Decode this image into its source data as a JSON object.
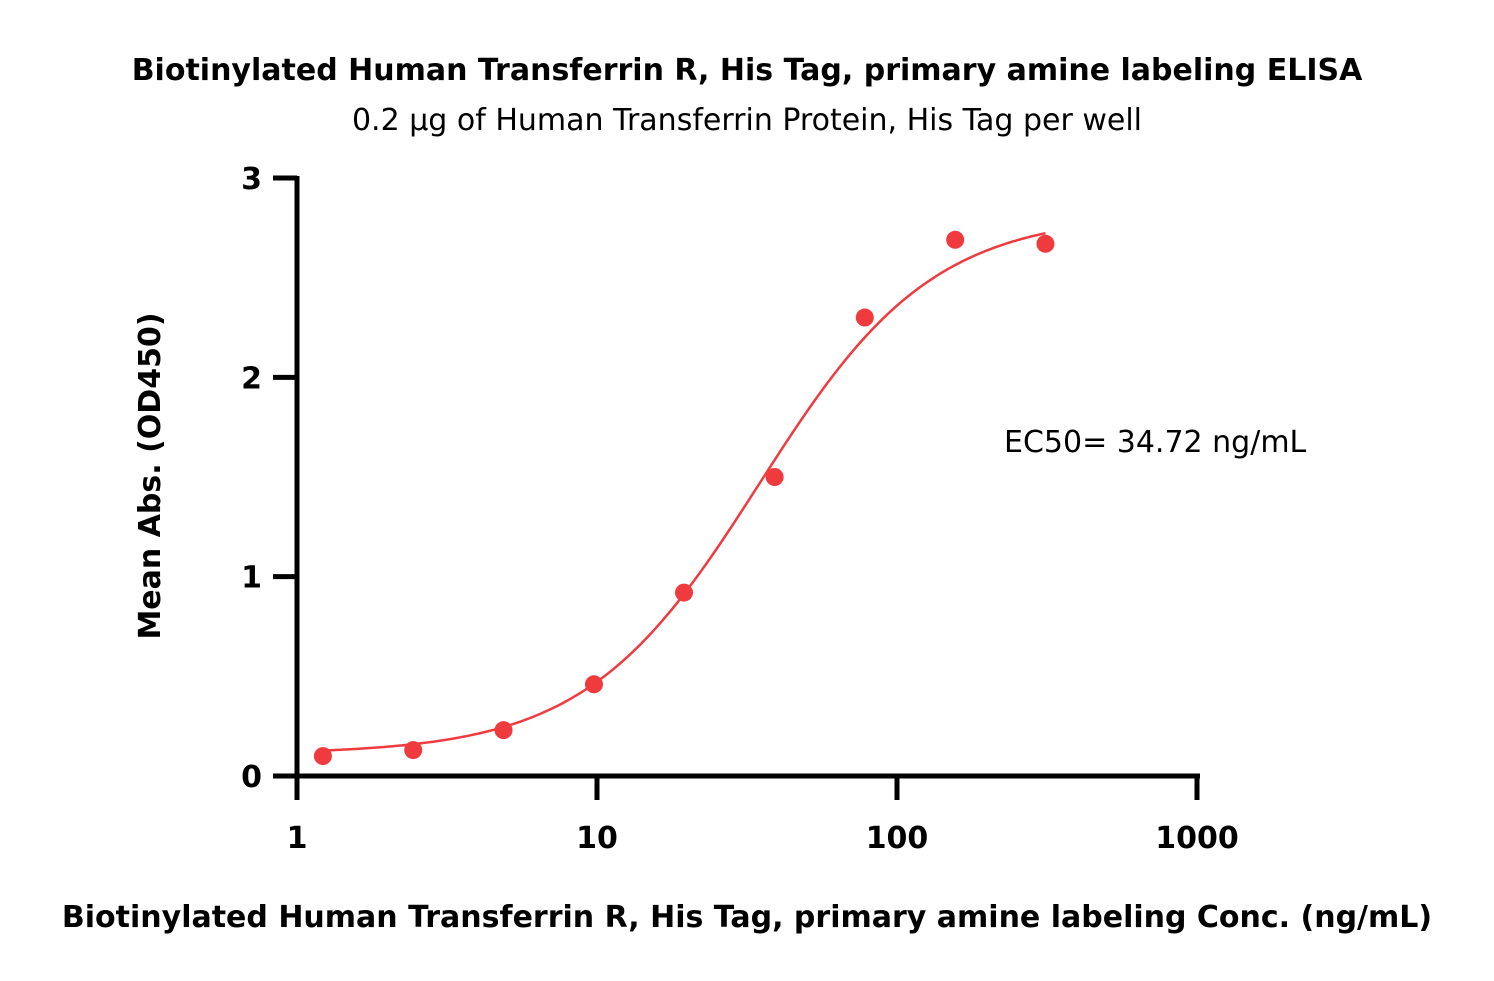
{
  "chart_data": {
    "type": "scatter",
    "title": "Biotinylated Human Transferrin R, His Tag, primary amine labeling ELISA",
    "subtitle": "0.2 µg of Human Transferrin Protein, His Tag per well",
    "xlabel": "Biotinylated Human Transferrin R, His Tag, primary amine labeling Conc. (ng/mL)",
    "ylabel": "Mean Abs. (OD450)",
    "x_scale": "log",
    "xlim": [
      1,
      1000
    ],
    "ylim": [
      0,
      3
    ],
    "x_ticks": [
      "1",
      "10",
      "100",
      "1000"
    ],
    "x_tick_values": [
      1,
      10,
      100,
      1000
    ],
    "y_ticks": [
      "0",
      "1",
      "2",
      "3"
    ],
    "y_tick_values": [
      0,
      1,
      2,
      3
    ],
    "grid": false,
    "color": "#ef3b3e",
    "series": [
      {
        "x": [
          1.22,
          2.44,
          4.88,
          9.77,
          19.5,
          39.1,
          78.1,
          156.3,
          312.5
        ],
        "y": [
          0.1,
          0.13,
          0.23,
          0.46,
          0.92,
          1.5,
          2.3,
          2.69,
          2.67
        ],
        "fit": {
          "model": "4PL",
          "bottom": 0.11,
          "top": 2.82,
          "ec50": 34.72,
          "hill": 1.5,
          "x_range": [
            1.22,
            312.5
          ]
        }
      }
    ],
    "annotations": [
      {
        "text": "EC50= 34.72 ng/mL"
      }
    ]
  }
}
